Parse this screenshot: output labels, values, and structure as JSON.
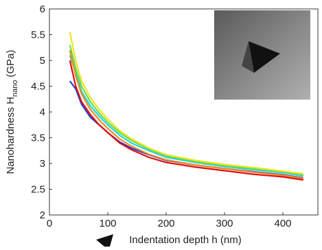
{
  "chart_data": {
    "type": "line",
    "x_label": "Indentation depth h (nm)",
    "y_label": {
      "main": "Nanohardness H",
      "sub": "nano",
      "unit": "(GPa)"
    },
    "xlim": [
      0,
      460
    ],
    "xticks": [
      0,
      100,
      200,
      300,
      400
    ],
    "ylim": [
      2,
      6
    ],
    "yticks": [
      2,
      2.5,
      3,
      3.5,
      4,
      4.5,
      5,
      5.5,
      6
    ],
    "x": [
      35,
      45,
      55,
      70,
      85,
      100,
      120,
      140,
      170,
      200,
      250,
      300,
      350,
      400,
      435
    ],
    "series": [
      {
        "color": "#1f3fd8",
        "values": [
          4.6,
          4.45,
          4.15,
          3.9,
          3.75,
          3.6,
          3.42,
          3.3,
          3.17,
          3.06,
          2.97,
          2.9,
          2.84,
          2.78,
          2.72
        ]
      },
      {
        "color": "#22d3e0",
        "values": [
          5.1,
          4.75,
          4.4,
          4.12,
          3.92,
          3.75,
          3.55,
          3.4,
          3.25,
          3.12,
          3.02,
          2.94,
          2.88,
          2.82,
          2.76
        ]
      },
      {
        "color": "#5ee04a",
        "values": [
          5.3,
          4.85,
          4.5,
          4.2,
          3.98,
          3.8,
          3.6,
          3.45,
          3.28,
          3.15,
          3.04,
          2.96,
          2.9,
          2.84,
          2.78
        ]
      },
      {
        "color": "#f2e21c",
        "values": [
          5.55,
          5.0,
          4.6,
          4.28,
          4.05,
          3.86,
          3.64,
          3.48,
          3.3,
          3.17,
          3.06,
          2.98,
          2.92,
          2.85,
          2.8
        ]
      },
      {
        "color": "#f28a1c",
        "values": [
          5.2,
          4.7,
          4.35,
          4.05,
          3.85,
          3.68,
          3.48,
          3.34,
          3.18,
          3.07,
          2.97,
          2.9,
          2.83,
          2.77,
          2.71
        ]
      },
      {
        "color": "#e01010",
        "values": [
          5.0,
          4.5,
          4.2,
          3.95,
          3.75,
          3.6,
          3.4,
          3.27,
          3.12,
          3.02,
          2.93,
          2.86,
          2.79,
          2.74,
          2.68
        ]
      }
    ]
  }
}
